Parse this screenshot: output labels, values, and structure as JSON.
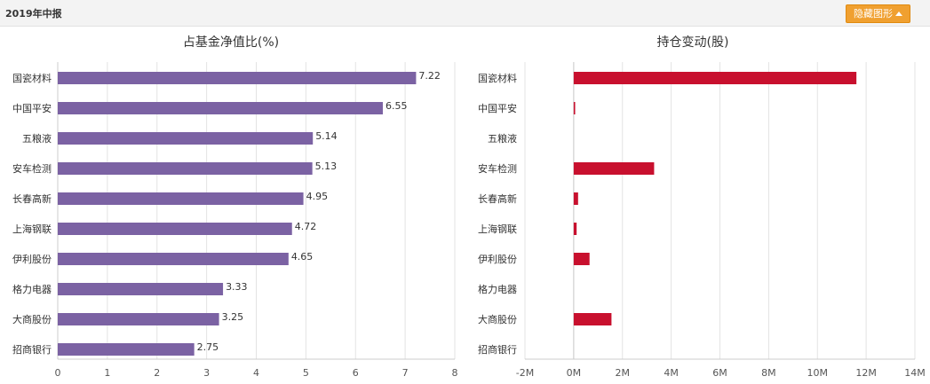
{
  "header": {
    "title": "2019年中报",
    "collapse_label": "隐藏图形"
  },
  "chart_data": [
    {
      "type": "bar",
      "orientation": "horizontal",
      "title": "占基金净值比(%)",
      "categories": [
        "国瓷材料",
        "中国平安",
        "五粮液",
        "安车检测",
        "长春高新",
        "上海钢联",
        "伊利股份",
        "格力电器",
        "大商股份",
        "招商银行"
      ],
      "values": [
        7.22,
        6.55,
        5.14,
        5.13,
        4.95,
        4.72,
        4.65,
        3.33,
        3.25,
        2.75
      ],
      "value_labels": [
        "7.22",
        "6.55",
        "5.14",
        "5.13",
        "4.95",
        "4.72",
        "4.65",
        "3.33",
        "3.25",
        "2.75"
      ],
      "xlim": [
        0,
        8
      ],
      "xticks": [
        0,
        1,
        2,
        3,
        4,
        5,
        6,
        7,
        8
      ],
      "tick_labels": [
        "0",
        "1",
        "2",
        "3",
        "4",
        "5",
        "6",
        "7",
        "8"
      ],
      "grid": true,
      "color": "#7b62a3"
    },
    {
      "type": "bar",
      "orientation": "horizontal",
      "title": "持仓变动(股)",
      "categories": [
        "国瓷材料",
        "中国平安",
        "五粮液",
        "安车检测",
        "长春高新",
        "上海钢联",
        "伊利股份",
        "格力电器",
        "大商股份",
        "招商银行"
      ],
      "values": [
        11600000,
        60000,
        0,
        3300000,
        180000,
        120000,
        650000,
        0,
        1550000,
        0
      ],
      "xlim": [
        -2000000,
        14000000
      ],
      "xticks": [
        -2000000,
        0,
        2000000,
        4000000,
        6000000,
        8000000,
        10000000,
        12000000,
        14000000
      ],
      "tick_labels": [
        "-2M",
        "0M",
        "2M",
        "4M",
        "6M",
        "8M",
        "10M",
        "12M",
        "14M"
      ],
      "grid": true,
      "color": "#c8102e"
    }
  ]
}
